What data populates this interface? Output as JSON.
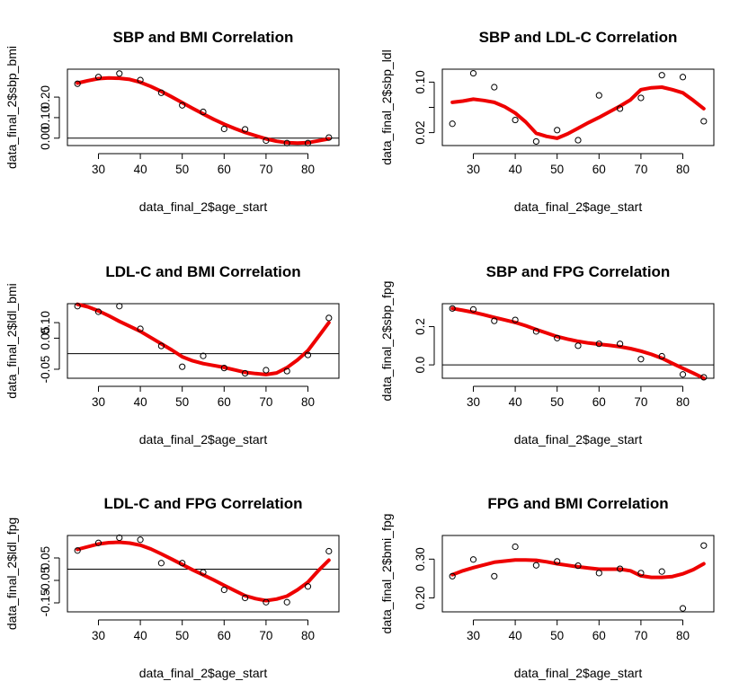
{
  "chart_data": [
    {
      "type": "scatter",
      "title": "SBP and BMI Correlation",
      "xlabel": "data_final_2$age_start",
      "ylabel": "data_final_2$sbp_bmi",
      "xlim": [
        22.6,
        87.4
      ],
      "ylim": [
        -0.036,
        0.336
      ],
      "xticks": [
        30,
        40,
        50,
        60,
        70,
        80
      ],
      "yticks": [
        0.0,
        0.1,
        0.2
      ],
      "ytick_labels": [
        "0.00",
        "0.10",
        "0.20"
      ],
      "hline": 0,
      "grid": false,
      "series": [
        {
          "kind": "points",
          "x": [
            25,
            30,
            35,
            40,
            45,
            50,
            55,
            60,
            65,
            70,
            75,
            80,
            85
          ],
          "y": [
            0.265,
            0.298,
            0.315,
            0.283,
            0.221,
            0.16,
            0.128,
            0.045,
            0.043,
            -0.012,
            -0.024,
            -0.024,
            0.003
          ]
        },
        {
          "kind": "smooth",
          "color": "#ee0000",
          "x": [
            25,
            27.5,
            30,
            32.5,
            35,
            37.5,
            40,
            42.5,
            45,
            47.5,
            50,
            52.5,
            55,
            57.5,
            60,
            62.5,
            65,
            67.5,
            70,
            72.5,
            75,
            77.5,
            80,
            82.5,
            85
          ],
          "y": [
            0.268,
            0.28,
            0.29,
            0.293,
            0.292,
            0.286,
            0.272,
            0.252,
            0.228,
            0.201,
            0.173,
            0.145,
            0.118,
            0.092,
            0.068,
            0.047,
            0.028,
            0.012,
            -0.003,
            -0.015,
            -0.022,
            -0.024,
            -0.022,
            -0.013,
            -0.003
          ]
        }
      ]
    },
    {
      "type": "scatter",
      "title": "SBP and LDL-C Correlation",
      "xlabel": "data_final_2$age_start",
      "ylabel": "data_final_2$sbp_ldl",
      "xlim": [
        22.6,
        87.4
      ],
      "ylim": [
        -0.0005,
        0.1205
      ],
      "xticks": [
        30,
        40,
        50,
        60,
        70,
        80
      ],
      "yticks": [
        0.02,
        0.06,
        0.1
      ],
      "ytick_labels": [
        "0.02",
        "",
        "0.10"
      ],
      "hline": null,
      "grid": false,
      "series": [
        {
          "kind": "points",
          "x": [
            25,
            30,
            35,
            40,
            45,
            50,
            55,
            60,
            65,
            70,
            75,
            80,
            85
          ],
          "y": [
            0.034,
            0.114,
            0.092,
            0.04,
            0.006,
            0.024,
            0.008,
            0.079,
            0.058,
            0.075,
            0.111,
            0.108,
            0.038
          ]
        },
        {
          "kind": "smooth",
          "color": "#ee0000",
          "x": [
            25,
            27.5,
            30,
            32.5,
            35,
            37.5,
            40,
            42.5,
            45,
            47.5,
            50,
            52.5,
            55,
            57.5,
            60,
            62.5,
            65,
            67.5,
            70,
            72.5,
            75,
            77.5,
            80,
            82.5,
            85
          ],
          "y": [
            0.068,
            0.07,
            0.073,
            0.071,
            0.068,
            0.061,
            0.051,
            0.037,
            0.019,
            0.014,
            0.011,
            0.018,
            0.027,
            0.036,
            0.044,
            0.053,
            0.062,
            0.072,
            0.088,
            0.091,
            0.092,
            0.088,
            0.083,
            0.071,
            0.058
          ]
        }
      ]
    },
    {
      "type": "scatter",
      "title": "LDL-C and BMI Correlation",
      "xlabel": "data_final_2$age_start",
      "ylabel": "data_final_2$ldl_bmi",
      "xlim": [
        22.6,
        87.4
      ],
      "ylim": [
        -0.079,
        0.161
      ],
      "xticks": [
        30,
        40,
        50,
        60,
        70,
        80
      ],
      "yticks": [
        -0.05,
        0.05,
        0.1
      ],
      "ytick_labels": [
        "-0.05",
        "0.05",
        "0.10"
      ],
      "hline": 0,
      "grid": false,
      "series": [
        {
          "kind": "points",
          "x": [
            25,
            30,
            35,
            40,
            45,
            50,
            55,
            60,
            65,
            70,
            75,
            80,
            85
          ],
          "y": [
            0.153,
            0.135,
            0.153,
            0.08,
            0.025,
            -0.042,
            -0.007,
            -0.046,
            -0.063,
            -0.053,
            -0.056,
            -0.004,
            0.115
          ]
        },
        {
          "kind": "smooth",
          "color": "#ee0000",
          "x": [
            25,
            27.5,
            30,
            32.5,
            35,
            37.5,
            40,
            42.5,
            45,
            47.5,
            50,
            52.5,
            55,
            57.5,
            60,
            62.5,
            65,
            67.5,
            70,
            72.5,
            75,
            77.5,
            80,
            82.5,
            85
          ],
          "y": [
            0.159,
            0.151,
            0.138,
            0.122,
            0.104,
            0.088,
            0.072,
            0.052,
            0.032,
            0.012,
            -0.01,
            -0.023,
            -0.032,
            -0.038,
            -0.044,
            -0.052,
            -0.06,
            -0.064,
            -0.067,
            -0.062,
            -0.045,
            -0.02,
            0.01,
            0.055,
            0.1
          ]
        }
      ]
    },
    {
      "type": "scatter",
      "title": "SBP and FPG Correlation",
      "xlabel": "data_final_2$age_start",
      "ylabel": "data_final_2$sbp_fpg",
      "xlim": [
        22.6,
        87.4
      ],
      "ylim": [
        -0.07,
        0.32
      ],
      "xticks": [
        30,
        40,
        50,
        60,
        70,
        80
      ],
      "yticks": [
        0.0,
        0.2
      ],
      "ytick_labels": [
        "0.0",
        "0.2"
      ],
      "hline": 0,
      "grid": false,
      "series": [
        {
          "kind": "points",
          "x": [
            25,
            30,
            35,
            40,
            45,
            50,
            55,
            60,
            65,
            70,
            75,
            80,
            85
          ],
          "y": [
            0.295,
            0.29,
            0.23,
            0.235,
            0.175,
            0.14,
            0.1,
            0.11,
            0.11,
            0.03,
            0.045,
            -0.05,
            -0.065
          ]
        },
        {
          "kind": "smooth",
          "color": "#ee0000",
          "x": [
            25,
            27.5,
            30,
            32.5,
            35,
            37.5,
            40,
            42.5,
            45,
            47.5,
            50,
            52.5,
            55,
            57.5,
            60,
            62.5,
            65,
            67.5,
            70,
            72.5,
            75,
            77.5,
            80,
            82.5,
            85
          ],
          "y": [
            0.295,
            0.285,
            0.275,
            0.262,
            0.248,
            0.235,
            0.222,
            0.205,
            0.185,
            0.167,
            0.148,
            0.135,
            0.123,
            0.114,
            0.108,
            0.102,
            0.095,
            0.085,
            0.072,
            0.055,
            0.035,
            0.008,
            -0.018,
            -0.043,
            -0.07
          ]
        }
      ]
    },
    {
      "type": "scatter",
      "title": "LDL-C and FPG Correlation",
      "xlabel": "data_final_2$age_start",
      "ylabel": "data_final_2$ldl_fpg",
      "xlim": [
        22.6,
        87.4
      ],
      "ylim": [
        -0.19,
        0.15
      ],
      "xticks": [
        30,
        40,
        50,
        60,
        70,
        80
      ],
      "yticks": [
        -0.15,
        -0.05,
        0.05
      ],
      "ytick_labels": [
        "-0.15",
        "-0.05",
        "0.05"
      ],
      "hline": 0,
      "grid": false,
      "series": [
        {
          "kind": "points",
          "x": [
            25,
            30,
            35,
            40,
            45,
            50,
            55,
            60,
            65,
            70,
            75,
            80,
            85
          ],
          "y": [
            0.083,
            0.117,
            0.14,
            0.131,
            0.027,
            0.027,
            -0.014,
            -0.092,
            -0.128,
            -0.147,
            -0.147,
            -0.077,
            0.08
          ]
        },
        {
          "kind": "smooth",
          "color": "#ee0000",
          "x": [
            25,
            27.5,
            30,
            32.5,
            35,
            37.5,
            40,
            42.5,
            45,
            47.5,
            50,
            52.5,
            55,
            57.5,
            60,
            62.5,
            65,
            67.5,
            70,
            72.5,
            75,
            77.5,
            80,
            82.5,
            85
          ],
          "y": [
            0.088,
            0.1,
            0.112,
            0.118,
            0.12,
            0.116,
            0.107,
            0.09,
            0.068,
            0.045,
            0.021,
            -0.003,
            -0.025,
            -0.048,
            -0.072,
            -0.095,
            -0.118,
            -0.131,
            -0.14,
            -0.133,
            -0.12,
            -0.092,
            -0.058,
            -0.006,
            0.04
          ]
        }
      ]
    },
    {
      "type": "scatter",
      "title": "FPG and BMI Correlation",
      "xlabel": "data_final_2$age_start",
      "ylabel": "data_final_2$bmi_fpg",
      "xlim": [
        22.6,
        87.4
      ],
      "ylim": [
        0.164,
        0.361
      ],
      "xticks": [
        30,
        40,
        50,
        60,
        70,
        80
      ],
      "yticks": [
        0.2,
        0.3
      ],
      "ytick_labels": [
        "0.20",
        "0.30"
      ],
      "hline": null,
      "grid": false,
      "series": [
        {
          "kind": "points",
          "x": [
            25,
            30,
            35,
            40,
            45,
            50,
            55,
            60,
            65,
            70,
            75,
            80,
            85
          ],
          "y": [
            0.256,
            0.299,
            0.256,
            0.332,
            0.284,
            0.294,
            0.283,
            0.264,
            0.275,
            0.264,
            0.268,
            0.173,
            0.335
          ]
        },
        {
          "kind": "smooth",
          "color": "#ee0000",
          "x": [
            25,
            27.5,
            30,
            32.5,
            35,
            37.5,
            40,
            42.5,
            45,
            47.5,
            50,
            52.5,
            55,
            57.5,
            60,
            62.5,
            65,
            67.5,
            70,
            72.5,
            75,
            77.5,
            80,
            82.5,
            85
          ],
          "y": [
            0.26,
            0.27,
            0.278,
            0.285,
            0.292,
            0.295,
            0.298,
            0.298,
            0.297,
            0.293,
            0.288,
            0.284,
            0.28,
            0.277,
            0.274,
            0.274,
            0.274,
            0.27,
            0.257,
            0.253,
            0.253,
            0.255,
            0.262,
            0.273,
            0.288
          ]
        }
      ]
    }
  ]
}
